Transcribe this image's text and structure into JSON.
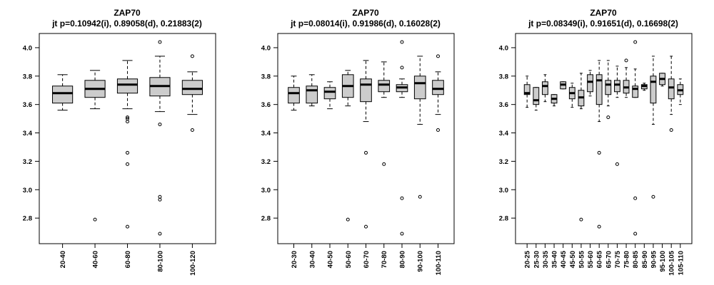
{
  "chart_data": [
    {
      "type": "box",
      "title": "ZAP70",
      "subtitle": "jt p=0.10942(i), 0.89058(d), 0.21883(2)",
      "xlabel": "",
      "ylabel": "",
      "ylim": [
        2.62,
        4.1
      ],
      "yticks": [
        "2.8",
        "3.0",
        "3.2",
        "3.4",
        "3.6",
        "3.8",
        "4.0"
      ],
      "categories": [
        "20-40",
        "40-60",
        "60-80",
        "80-100",
        "100-120"
      ],
      "boxes": [
        {
          "low": 3.56,
          "q1": 3.61,
          "median": 3.68,
          "q3": 3.73,
          "high": 3.81,
          "outliers": []
        },
        {
          "low": 3.57,
          "q1": 3.65,
          "median": 3.71,
          "q3": 3.77,
          "high": 3.84,
          "outliers": [
            2.79
          ]
        },
        {
          "low": 3.57,
          "q1": 3.68,
          "median": 3.74,
          "q3": 3.78,
          "high": 3.91,
          "outliers": [
            3.51,
            3.5,
            3.48,
            3.26,
            3.18,
            2.74
          ]
        },
        {
          "low": 3.55,
          "q1": 3.66,
          "median": 3.73,
          "q3": 3.79,
          "high": 3.94,
          "outliers": [
            4.04,
            3.46,
            2.95,
            2.93,
            2.69
          ]
        },
        {
          "low": 3.53,
          "q1": 3.67,
          "median": 3.71,
          "q3": 3.77,
          "high": 3.83,
          "outliers": [
            3.94,
            3.42
          ]
        }
      ]
    },
    {
      "type": "box",
      "title": "ZAP70",
      "subtitle": "jt p=0.08014(i), 0.91986(d), 0.16028(2)",
      "xlabel": "",
      "ylabel": "",
      "ylim": [
        2.62,
        4.1
      ],
      "yticks": [
        "2.8",
        "3.0",
        "3.2",
        "3.4",
        "3.6",
        "3.8",
        "4.0"
      ],
      "categories": [
        "20-30",
        "30-40",
        "40-50",
        "50-60",
        "60-70",
        "70-80",
        "80-90",
        "90-100",
        "100-110"
      ],
      "boxes": [
        {
          "low": 3.56,
          "q1": 3.61,
          "median": 3.68,
          "q3": 3.72,
          "high": 3.8,
          "outliers": []
        },
        {
          "low": 3.59,
          "q1": 3.61,
          "median": 3.7,
          "q3": 3.73,
          "high": 3.81,
          "outliers": []
        },
        {
          "low": 3.57,
          "q1": 3.64,
          "median": 3.69,
          "q3": 3.72,
          "high": 3.76,
          "outliers": []
        },
        {
          "low": 3.59,
          "q1": 3.65,
          "median": 3.73,
          "q3": 3.81,
          "high": 3.84,
          "outliers": [
            2.79
          ]
        },
        {
          "low": 3.48,
          "q1": 3.62,
          "median": 3.74,
          "q3": 3.78,
          "high": 3.91,
          "outliers": [
            3.26,
            2.74
          ]
        },
        {
          "low": 3.65,
          "q1": 3.69,
          "median": 3.74,
          "q3": 3.77,
          "high": 3.9,
          "outliers": [
            3.18
          ]
        },
        {
          "low": 3.65,
          "q1": 3.69,
          "median": 3.72,
          "q3": 3.74,
          "high": 3.78,
          "outliers": [
            4.04,
            3.86,
            2.94,
            2.69
          ]
        },
        {
          "low": 3.46,
          "q1": 3.64,
          "median": 3.75,
          "q3": 3.8,
          "high": 3.94,
          "outliers": [
            2.95
          ]
        },
        {
          "low": 3.53,
          "q1": 3.67,
          "median": 3.71,
          "q3": 3.77,
          "high": 3.83,
          "outliers": [
            3.94,
            3.42
          ]
        }
      ]
    },
    {
      "type": "box",
      "title": "ZAP70",
      "subtitle": "jt p=0.08349(i), 0.91651(d), 0.16698(2)",
      "xlabel": "",
      "ylabel": "",
      "ylim": [
        2.62,
        4.1
      ],
      "yticks": [
        "2.8",
        "3.0",
        "3.2",
        "3.4",
        "3.6",
        "3.8",
        "4.0"
      ],
      "categories": [
        "20-25",
        "25-30",
        "30-35",
        "35-40",
        "40-45",
        "45-50",
        "50-55",
        "55-60",
        "60-65",
        "65-70",
        "70-75",
        "75-80",
        "80-85",
        "85-90",
        "90-95",
        "95-100",
        "100-105",
        "105-110"
      ],
      "boxes": [
        {
          "low": 3.58,
          "q1": 3.67,
          "median": 3.68,
          "q3": 3.74,
          "high": 3.8,
          "outliers": []
        },
        {
          "low": 3.56,
          "q1": 3.6,
          "median": 3.63,
          "q3": 3.72,
          "high": 3.72,
          "outliers": []
        },
        {
          "low": 3.62,
          "q1": 3.67,
          "median": 3.73,
          "q3": 3.76,
          "high": 3.81,
          "outliers": []
        },
        {
          "low": 3.59,
          "q1": 3.61,
          "median": 3.64,
          "q3": 3.67,
          "high": 3.67,
          "outliers": []
        },
        {
          "low": 3.71,
          "q1": 3.71,
          "median": 3.74,
          "q3": 3.76,
          "high": 3.76,
          "outliers": []
        },
        {
          "low": 3.58,
          "q1": 3.64,
          "median": 3.68,
          "q3": 3.72,
          "high": 3.75,
          "outliers": []
        },
        {
          "low": 3.57,
          "q1": 3.59,
          "median": 3.65,
          "q3": 3.7,
          "high": 3.82,
          "outliers": [
            2.79
          ]
        },
        {
          "low": 3.66,
          "q1": 3.69,
          "median": 3.76,
          "q3": 3.81,
          "high": 3.84,
          "outliers": []
        },
        {
          "low": 3.48,
          "q1": 3.6,
          "median": 3.77,
          "q3": 3.81,
          "high": 3.91,
          "outliers": [
            3.26,
            2.74
          ]
        },
        {
          "low": 3.59,
          "q1": 3.67,
          "median": 3.74,
          "q3": 3.77,
          "high": 3.91,
          "outliers": [
            3.51
          ]
        },
        {
          "low": 3.65,
          "q1": 3.69,
          "median": 3.74,
          "q3": 3.77,
          "high": 3.87,
          "outliers": [
            3.18
          ]
        },
        {
          "low": 3.65,
          "q1": 3.68,
          "median": 3.72,
          "q3": 3.77,
          "high": 3.86,
          "outliers": [
            3.91
          ]
        },
        {
          "low": 3.65,
          "q1": 3.65,
          "median": 3.71,
          "q3": 3.73,
          "high": 3.85,
          "outliers": [
            4.04,
            2.94,
            2.69
          ]
        },
        {
          "low": 3.7,
          "q1": 3.71,
          "median": 3.73,
          "q3": 3.74,
          "high": 3.75,
          "outliers": []
        },
        {
          "low": 3.46,
          "q1": 3.61,
          "median": 3.76,
          "q3": 3.8,
          "high": 3.94,
          "outliers": [
            2.95
          ]
        },
        {
          "low": 3.73,
          "q1": 3.74,
          "median": 3.78,
          "q3": 3.82,
          "high": 3.82,
          "outliers": []
        },
        {
          "low": 3.53,
          "q1": 3.64,
          "median": 3.72,
          "q3": 3.78,
          "high": 3.94,
          "outliers": [
            3.42
          ]
        },
        {
          "low": 3.6,
          "q1": 3.67,
          "median": 3.7,
          "q3": 3.74,
          "high": 3.78,
          "outliers": []
        }
      ]
    }
  ],
  "colors": {
    "box_fill": "#cccccc",
    "stroke": "#000000",
    "background": "#ffffff"
  }
}
